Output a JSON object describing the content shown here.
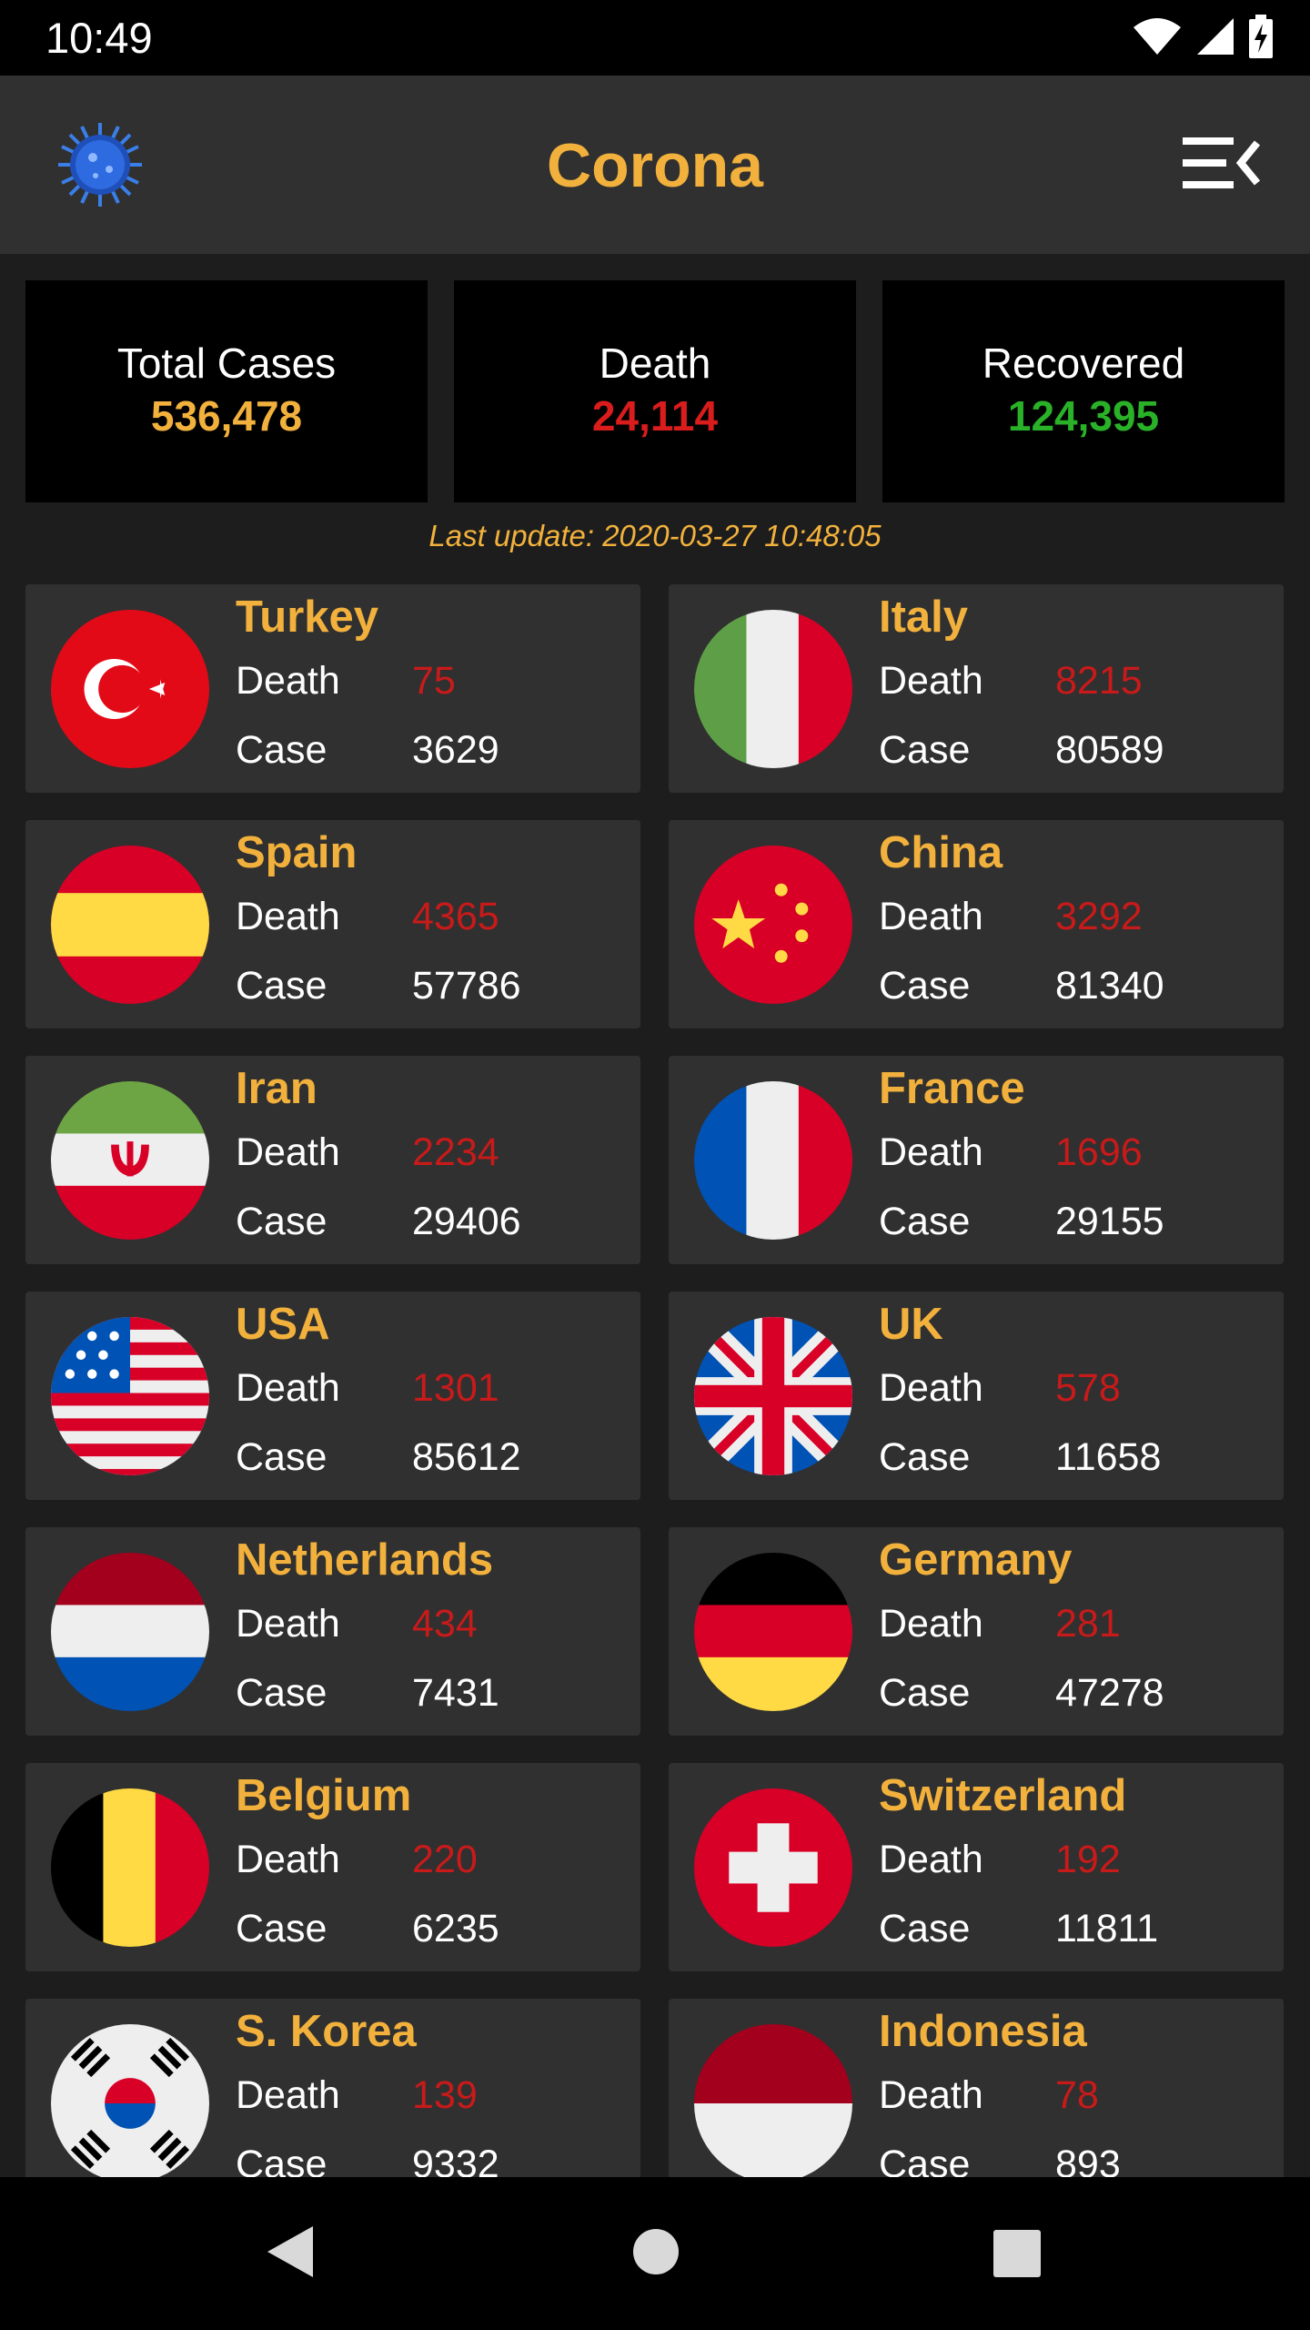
{
  "status": {
    "time": "10:49"
  },
  "app": {
    "title": "Corona"
  },
  "summary": [
    {
      "label": "Total Cases",
      "value": "536,478",
      "color": "#f2b13c"
    },
    {
      "label": "Death",
      "value": "24,114",
      "color": "#d91c1c"
    },
    {
      "label": "Recovered",
      "value": "124,395",
      "color": "#29b228"
    }
  ],
  "last_update": "Last update: 2020-03-27 10:48:05",
  "labels": {
    "death": "Death",
    "case": "Case"
  },
  "countries": [
    {
      "name": "Turkey",
      "death": "75",
      "case": "3629",
      "flag": "turkey-flag-icon"
    },
    {
      "name": "Italy",
      "death": "8215",
      "case": "80589",
      "flag": "italy-flag-icon"
    },
    {
      "name": "Spain",
      "death": "4365",
      "case": "57786",
      "flag": "spain-flag-icon"
    },
    {
      "name": "China",
      "death": "3292",
      "case": "81340",
      "flag": "china-flag-icon"
    },
    {
      "name": "Iran",
      "death": "2234",
      "case": "29406",
      "flag": "iran-flag-icon"
    },
    {
      "name": "France",
      "death": "1696",
      "case": "29155",
      "flag": "france-flag-icon"
    },
    {
      "name": "USA",
      "death": "1301",
      "case": "85612",
      "flag": "usa-flag-icon"
    },
    {
      "name": "UK",
      "death": "578",
      "case": "11658",
      "flag": "uk-flag-icon"
    },
    {
      "name": "Netherlands",
      "death": "434",
      "case": "7431",
      "flag": "netherlands-flag-icon"
    },
    {
      "name": "Germany",
      "death": "281",
      "case": "47278",
      "flag": "germany-flag-icon"
    },
    {
      "name": "Belgium",
      "death": "220",
      "case": "6235",
      "flag": "belgium-flag-icon"
    },
    {
      "name": "Switzerland",
      "death": "192",
      "case": "11811",
      "flag": "switzerland-flag-icon"
    },
    {
      "name": "S. Korea",
      "death": "139",
      "case": "9332",
      "flag": "south-korea-flag-icon"
    },
    {
      "name": "Indonesia",
      "death": "78",
      "case": "893",
      "flag": "indonesia-flag-icon"
    }
  ]
}
